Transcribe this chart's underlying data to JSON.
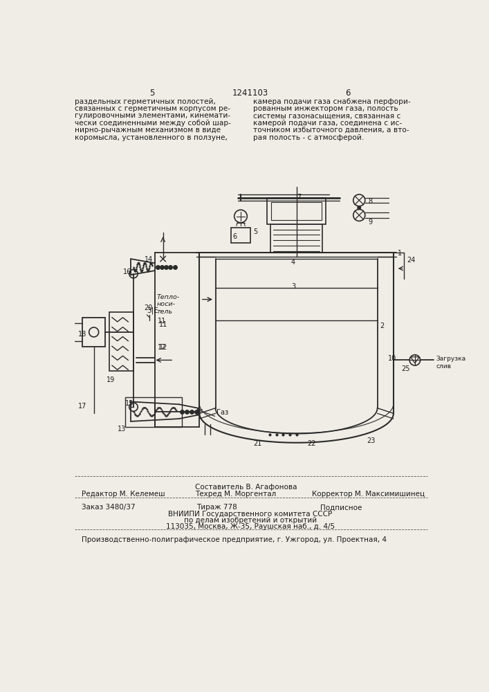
{
  "bg_color": "#f0ede6",
  "page_width": 7.07,
  "page_height": 10.0,
  "header_patent_num": "1241103",
  "header_left_page": "5",
  "header_right_page": "6",
  "left_col_lines": [
    "раздельных герметичных полостей,",
    "связанных с герметичным корпусом ре-",
    "гулировочными элементами, кинемати-",
    "чески соединенными между собой шар-",
    "нирно-рычажным механизмом в виде",
    "коромысла, установленного в ползуне,"
  ],
  "right_col_lines": [
    "камера подачи газа снабжена перфори-",
    "рованным инжектором газа, полость",
    "системы газонасыщения, связанная с",
    "камерой подачи газа, соединена с ис-",
    "точником избыточного давления, а вто-",
    "рая полость - с атмосферой."
  ],
  "teplonositель": "Тепло-\nноси-\nтель",
  "gaz_label": "Газ",
  "zagruzka_sliv": "Загрузка\nслив",
  "footer_editor": "Редактор М. Келемеш",
  "footer_composer": "Составитель В. Агафонова",
  "footer_techred": "Техред М. Моргентал",
  "footer_corrector": "Корректор М. Максимишинец",
  "footer_order": "Заказ 3480/37",
  "footer_tirazh": "Тираж 778",
  "footer_podpisnoe": "Подписное",
  "footer_vniipи": "ВНИИПИ Государственного комитета СССР",
  "footer_po_delam": "по делам изобретений и открытий",
  "footer_address": "113035, Москва, Ж-35, Раушская наб., д. 4/5",
  "footer_factory": "Производственно-полиграфическое предприятие, г. Ужгород, ул. Проектная, 4",
  "text_color": "#1a1a1a",
  "line_color": "#2a2a2a"
}
